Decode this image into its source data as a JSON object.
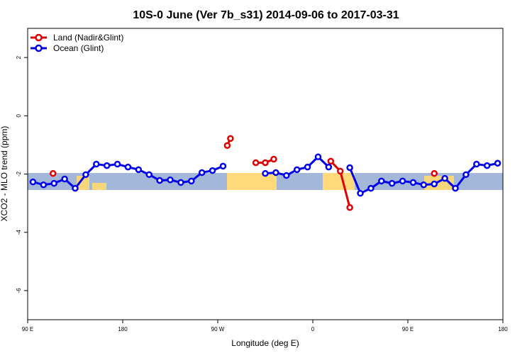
{
  "chart_data": {
    "type": "line",
    "title": "10S-0 June (Ver 7b_s31)   2014-09-06 to 2017-03-31",
    "x_label": "Longitude (deg E)",
    "y_label": "XCO2 - MLO trend (ppm)",
    "xlim": [
      90,
      540
    ],
    "ylim": [
      -7,
      3
    ],
    "xticks": [
      {
        "value": 90,
        "label": "90 E"
      },
      180,
      {
        "value": 270,
        "label": "90 W"
      },
      {
        "value": 360,
        "label": "0"
      },
      {
        "value": 450,
        "label": "90 E"
      },
      {
        "value": 540,
        "label": "180"
      }
    ],
    "yticks": [
      -6,
      -4,
      -2,
      0,
      2
    ],
    "legend": "top-left",
    "series": [
      {
        "name": "Land (Nadir&Glint)",
        "color": "#e00000",
        "x": [
          114,
          null,
          279,
          282,
          null,
          306,
          315,
          323,
          null,
          377,
          386,
          395,
          null,
          475
        ],
        "values": [
          -1.98,
          null,
          -1.02,
          -0.78,
          null,
          -1.61,
          -1.61,
          -1.49,
          null,
          -1.56,
          -1.9,
          -3.15,
          null,
          -1.98
        ]
      },
      {
        "name": "Ocean (Glint)",
        "color": "#0000ee",
        "x": [
          95,
          105,
          115,
          125,
          135,
          145,
          155,
          165,
          175,
          185,
          195,
          205,
          215,
          225,
          235,
          245,
          255,
          265,
          275,
          285,
          295,
          305,
          315,
          325,
          335,
          345,
          355,
          365,
          375,
          385,
          395,
          405,
          415,
          425,
          435,
          445,
          455,
          465,
          475,
          485,
          495,
          505,
          515,
          525,
          535
        ],
        "values": [
          -2.27,
          -2.37,
          -2.32,
          -2.17,
          -2.49,
          -2.02,
          -1.66,
          -1.71,
          -1.66,
          -1.76,
          -1.85,
          -2.02,
          -2.22,
          -2.2,
          -2.29,
          -2.24,
          -1.95,
          -1.88,
          -1.73,
          null,
          null,
          null,
          -1.98,
          -1.95,
          -2.05,
          -1.85,
          -1.76,
          -1.41,
          -1.76,
          null,
          -1.78,
          -2.66,
          -2.49,
          -2.24,
          -2.32,
          -2.24,
          -2.29,
          -2.37,
          -2.34,
          -2.15,
          -2.49,
          -2.02,
          -1.66,
          -1.71,
          -1.63
        ]
      }
    ]
  }
}
